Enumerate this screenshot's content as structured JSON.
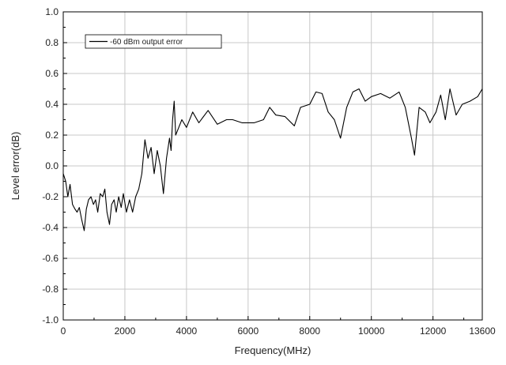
{
  "chart_data": {
    "type": "line",
    "title": "",
    "xlabel": "Frequency(MHz)",
    "ylabel": "Level error(dB)",
    "xlim": [
      0,
      13600
    ],
    "ylim": [
      -1.0,
      1.0
    ],
    "grid": true,
    "legend_position": "top-left",
    "x_ticks": [
      0,
      2000,
      4000,
      6000,
      8000,
      10000,
      12000,
      13600
    ],
    "x_tick_labels": [
      "0",
      "2000",
      "4000",
      "6000",
      "8000",
      "10000",
      "12000",
      "13600"
    ],
    "y_ticks": [
      1.0,
      0.8,
      0.6,
      0.4,
      0.2,
      0.0,
      -0.2,
      -0.4,
      -0.6,
      -0.8,
      -1.0
    ],
    "y_tick_labels": [
      "1.0",
      "0.8",
      "0.6",
      "0.4",
      "0.2",
      "0.0",
      "-0.2",
      "-0.4",
      "-0.6",
      "-0.8",
      "-1.0"
    ],
    "series": [
      {
        "name": "-60 dBm output error",
        "color": "#000000",
        "points": [
          [
            0,
            -0.05
          ],
          [
            80,
            -0.1
          ],
          [
            150,
            -0.2
          ],
          [
            220,
            -0.12
          ],
          [
            300,
            -0.25
          ],
          [
            380,
            -0.28
          ],
          [
            450,
            -0.3
          ],
          [
            520,
            -0.27
          ],
          [
            600,
            -0.35
          ],
          [
            680,
            -0.42
          ],
          [
            750,
            -0.28
          ],
          [
            820,
            -0.22
          ],
          [
            900,
            -0.2
          ],
          [
            980,
            -0.25
          ],
          [
            1050,
            -0.22
          ],
          [
            1120,
            -0.3
          ],
          [
            1200,
            -0.18
          ],
          [
            1280,
            -0.2
          ],
          [
            1350,
            -0.15
          ],
          [
            1420,
            -0.3
          ],
          [
            1500,
            -0.38
          ],
          [
            1570,
            -0.25
          ],
          [
            1650,
            -0.22
          ],
          [
            1720,
            -0.3
          ],
          [
            1800,
            -0.2
          ],
          [
            1880,
            -0.27
          ],
          [
            1950,
            -0.18
          ],
          [
            2050,
            -0.3
          ],
          [
            2150,
            -0.22
          ],
          [
            2250,
            -0.3
          ],
          [
            2350,
            -0.2
          ],
          [
            2450,
            -0.15
          ],
          [
            2550,
            -0.05
          ],
          [
            2650,
            0.17
          ],
          [
            2750,
            0.05
          ],
          [
            2850,
            0.12
          ],
          [
            2950,
            -0.05
          ],
          [
            3050,
            0.1
          ],
          [
            3150,
            0.0
          ],
          [
            3250,
            -0.18
          ],
          [
            3350,
            0.05
          ],
          [
            3450,
            0.18
          ],
          [
            3500,
            0.1
          ],
          [
            3550,
            0.3
          ],
          [
            3600,
            0.42
          ],
          [
            3650,
            0.2
          ],
          [
            3750,
            0.25
          ],
          [
            3850,
            0.3
          ],
          [
            4000,
            0.25
          ],
          [
            4200,
            0.35
          ],
          [
            4400,
            0.28
          ],
          [
            4700,
            0.36
          ],
          [
            5000,
            0.27
          ],
          [
            5300,
            0.3
          ],
          [
            5500,
            0.3
          ],
          [
            5800,
            0.28
          ],
          [
            6200,
            0.28
          ],
          [
            6500,
            0.3
          ],
          [
            6700,
            0.38
          ],
          [
            6900,
            0.33
          ],
          [
            7200,
            0.32
          ],
          [
            7500,
            0.26
          ],
          [
            7700,
            0.38
          ],
          [
            8000,
            0.4
          ],
          [
            8200,
            0.48
          ],
          [
            8400,
            0.47
          ],
          [
            8600,
            0.35
          ],
          [
            8800,
            0.3
          ],
          [
            9000,
            0.18
          ],
          [
            9200,
            0.38
          ],
          [
            9400,
            0.48
          ],
          [
            9600,
            0.5
          ],
          [
            9800,
            0.42
          ],
          [
            10000,
            0.45
          ],
          [
            10300,
            0.47
          ],
          [
            10600,
            0.44
          ],
          [
            10900,
            0.48
          ],
          [
            11100,
            0.38
          ],
          [
            11300,
            0.18
          ],
          [
            11400,
            0.07
          ],
          [
            11550,
            0.38
          ],
          [
            11750,
            0.35
          ],
          [
            11900,
            0.28
          ],
          [
            12100,
            0.35
          ],
          [
            12250,
            0.46
          ],
          [
            12400,
            0.3
          ],
          [
            12550,
            0.5
          ],
          [
            12750,
            0.33
          ],
          [
            12950,
            0.4
          ],
          [
            13200,
            0.42
          ],
          [
            13450,
            0.45
          ],
          [
            13600,
            0.5
          ]
        ]
      }
    ]
  }
}
